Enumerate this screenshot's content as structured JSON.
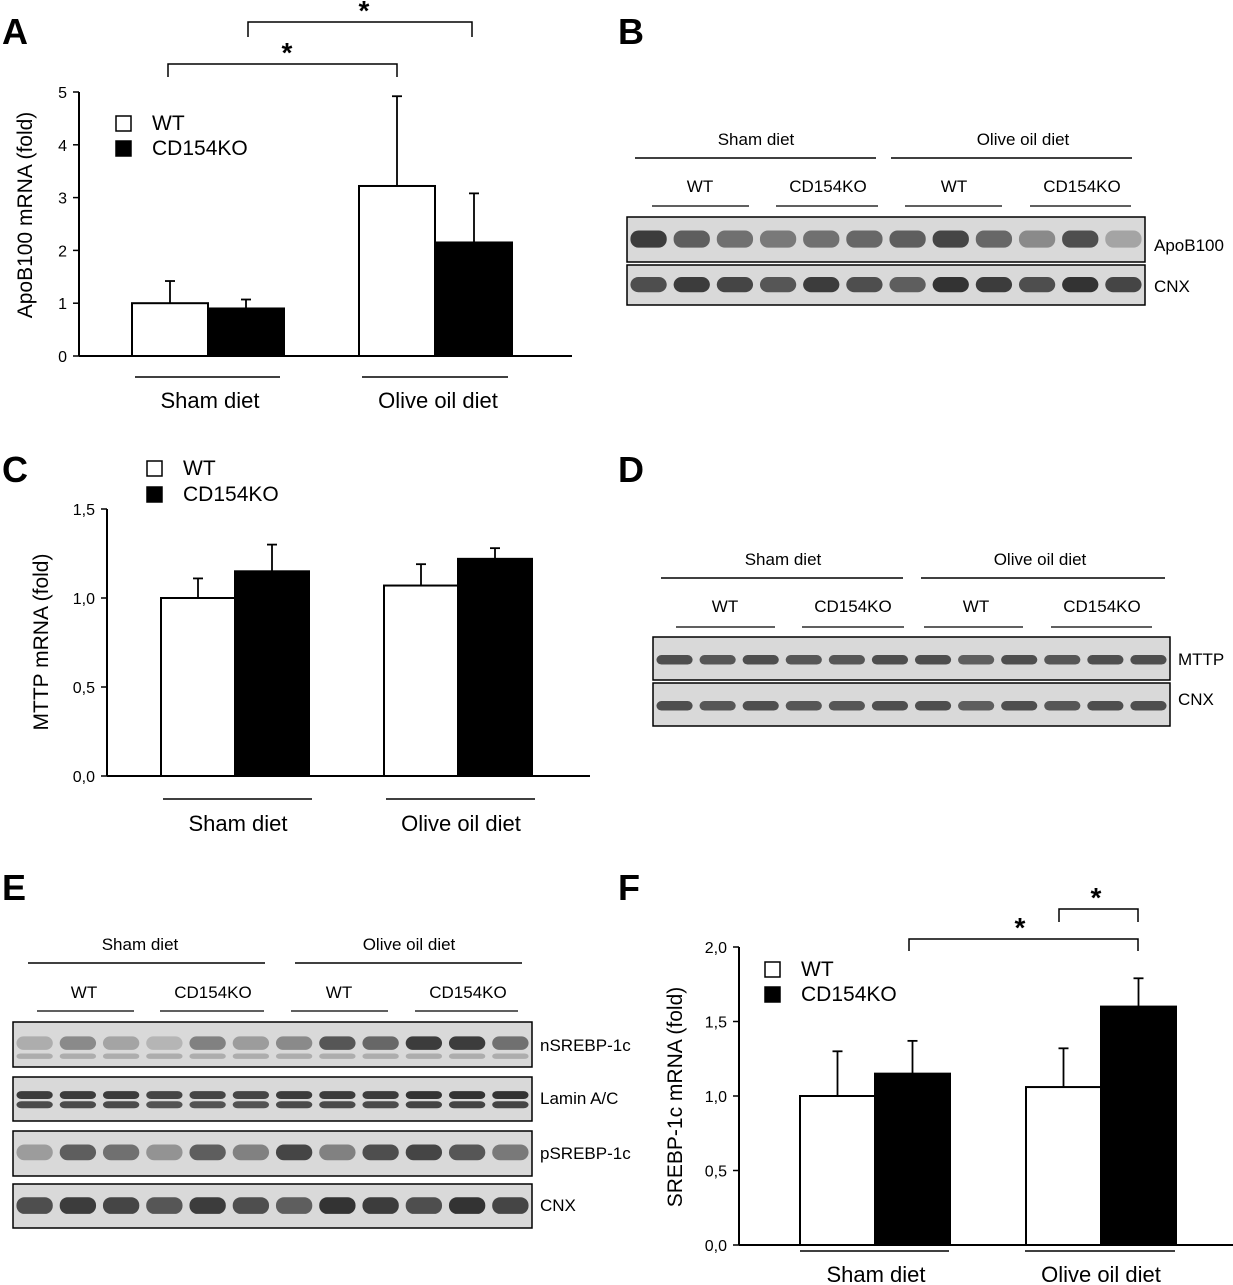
{
  "panels": {
    "A": {
      "letter": "A",
      "chart_data": {
        "type": "bar",
        "categories": [
          "Sham diet",
          "Olive oil diet"
        ],
        "series": [
          {
            "name": "WT",
            "values": [
              1.0,
              3.22
            ],
            "errors": [
              0.42,
              1.7
            ],
            "color": "#ffffff"
          },
          {
            "name": "CD154KO",
            "values": [
              0.9,
              2.15
            ],
            "errors": [
              0.17,
              0.93
            ],
            "color": "#000000"
          }
        ],
        "ylabel": "ApoB100 mRNA (fold)",
        "ylim": [
          0,
          5
        ],
        "yticks": [
          "0",
          "1",
          "2",
          "3",
          "4",
          "5"
        ],
        "legend": "top-left",
        "significance": [
          "*",
          "*"
        ]
      }
    },
    "C": {
      "letter": "C",
      "chart_data": {
        "type": "bar",
        "categories": [
          "Sham diet",
          "Olive oil diet"
        ],
        "series": [
          {
            "name": "WT",
            "values": [
              1.0,
              1.07
            ],
            "errors": [
              0.11,
              0.12
            ],
            "color": "#ffffff"
          },
          {
            "name": "CD154KO",
            "values": [
              1.15,
              1.22
            ],
            "errors": [
              0.15,
              0.06
            ],
            "color": "#000000"
          }
        ],
        "ylabel": "MTTP mRNA (fold)",
        "ylim": [
          0,
          1.5
        ],
        "yticks": [
          "0,0",
          "0,5",
          "1,0",
          "1,5"
        ],
        "legend": "top-left"
      }
    },
    "F": {
      "letter": "F",
      "chart_data": {
        "type": "bar",
        "categories": [
          "Sham diet",
          "Olive oil diet"
        ],
        "series": [
          {
            "name": "WT",
            "values": [
              1.0,
              1.06
            ],
            "errors": [
              0.3,
              0.26
            ],
            "color": "#ffffff"
          },
          {
            "name": "CD154KO",
            "values": [
              1.15,
              1.6
            ],
            "errors": [
              0.22,
              0.19
            ],
            "color": "#000000"
          }
        ],
        "ylabel": "SREBP-1c mRNA (fold)",
        "ylim": [
          0,
          2.0
        ],
        "yticks": [
          "0,0",
          "0,5",
          "1,0",
          "1,5",
          "2,0"
        ],
        "legend": "top-left",
        "significance": [
          "*",
          "*"
        ]
      }
    },
    "B": {
      "letter": "B",
      "groups": [
        "Sham diet",
        "Olive oil diet"
      ],
      "genotypes": [
        "WT",
        "CD154KO",
        "WT",
        "CD154KO"
      ],
      "bands": [
        "ApoB100",
        "CNX"
      ]
    },
    "D": {
      "letter": "D",
      "groups": [
        "Sham diet",
        "Olive oil diet"
      ],
      "genotypes": [
        "WT",
        "CD154KO",
        "WT",
        "CD154KO"
      ],
      "bands": [
        "MTTP",
        "CNX"
      ]
    },
    "E": {
      "letter": "E",
      "groups": [
        "Sham diet",
        "Olive oil diet"
      ],
      "genotypes": [
        "WT",
        "CD154KO",
        "WT",
        "CD154KO"
      ],
      "bands": [
        "nSREBP-1c",
        "Lamin A/C",
        "pSREBP-1c",
        "CNX"
      ]
    }
  },
  "colors": {
    "wt_fill": "#ffffff",
    "ko_fill": "#000000",
    "blot_bg": "#d9d9d9",
    "band": "#2a2a2a"
  }
}
